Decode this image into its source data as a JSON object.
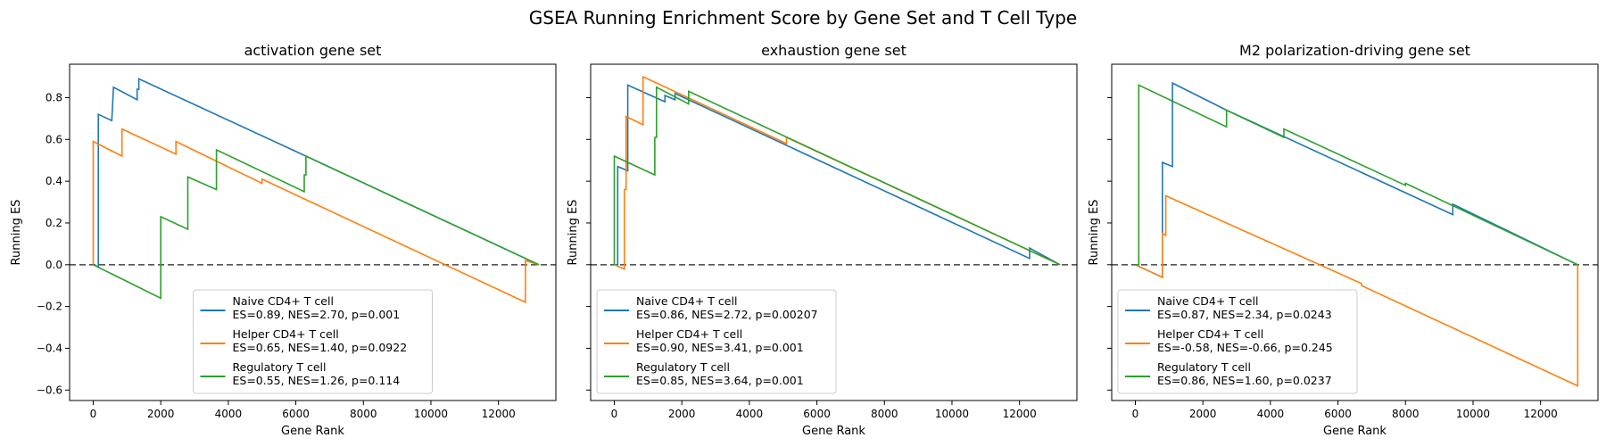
{
  "suptitle": "GSEA Running Enrichment Score by Gene Set and T Cell Type",
  "colors": {
    "naive": "#1f77b4",
    "helper": "#ff7f0e",
    "treg": "#2ca02c",
    "zero_line": "#555555"
  },
  "chart_data": [
    {
      "type": "line",
      "title": "activation gene set",
      "xlabel": "Gene Rank",
      "ylabel": "Running ES",
      "xlim": [
        -700,
        13700
      ],
      "ylim": [
        -0.65,
        0.96
      ],
      "xticks": [
        0,
        2000,
        4000,
        6000,
        8000,
        10000,
        12000
      ],
      "yticks": [
        -0.6,
        -0.4,
        -0.2,
        0.0,
        0.2,
        0.4,
        0.6,
        0.8
      ],
      "show_yticklabels": true,
      "legend_position": "lower center",
      "series": [
        {
          "name": "Naive CD4+ T cell",
          "stats": "ES=0.89, NES=2.70, p=0.001",
          "points": [
            [
              0,
              0
            ],
            [
              150,
              -0.01
            ],
            [
              150,
              0.72
            ],
            [
              550,
              0.69
            ],
            [
              550,
              0.69
            ],
            [
              600,
              0.85
            ],
            [
              1300,
              0.79
            ],
            [
              1300,
              0.84
            ],
            [
              1350,
              0.84
            ],
            [
              1350,
              0.89
            ],
            [
              6300,
              0.52
            ],
            [
              13200,
              0.0
            ]
          ]
        },
        {
          "name": "Helper CD4+ T cell",
          "stats": "ES=0.65, NES=1.40, p=0.0922",
          "points": [
            [
              0,
              0
            ],
            [
              0,
              0.59
            ],
            [
              850,
              0.52
            ],
            [
              850,
              0.65
            ],
            [
              2450,
              0.53
            ],
            [
              2450,
              0.59
            ],
            [
              5000,
              0.39
            ],
            [
              5000,
              0.41
            ],
            [
              12800,
              -0.18
            ],
            [
              12800,
              0.02
            ],
            [
              13200,
              0.0
            ]
          ]
        },
        {
          "name": "Regulatory T cell",
          "stats": "ES=0.55, NES=1.26, p=0.114",
          "points": [
            [
              0,
              0
            ],
            [
              2000,
              -0.16
            ],
            [
              2000,
              0.23
            ],
            [
              2800,
              0.17
            ],
            [
              2800,
              0.42
            ],
            [
              3650,
              0.36
            ],
            [
              3650,
              0.55
            ],
            [
              6250,
              0.35
            ],
            [
              6250,
              0.43
            ],
            [
              6300,
              0.43
            ],
            [
              6300,
              0.52
            ],
            [
              13200,
              0.0
            ]
          ]
        }
      ]
    },
    {
      "type": "line",
      "title": "exhaustion gene set",
      "xlabel": "Gene Rank",
      "ylabel": "Running ES",
      "xlim": [
        -700,
        13700
      ],
      "ylim": [
        -0.65,
        0.96
      ],
      "xticks": [
        0,
        2000,
        4000,
        6000,
        8000,
        10000,
        12000
      ],
      "yticks": [
        -0.6,
        -0.4,
        -0.2,
        0.0,
        0.2,
        0.4,
        0.6,
        0.8
      ],
      "show_yticklabels": false,
      "legend_position": "lower left",
      "series": [
        {
          "name": "Naive CD4+ T cell",
          "stats": "ES=0.86, NES=2.72, p=0.00207",
          "points": [
            [
              0,
              0
            ],
            [
              100,
              0.0
            ],
            [
              100,
              0.47
            ],
            [
              400,
              0.45
            ],
            [
              400,
              0.86
            ],
            [
              1500,
              0.78
            ],
            [
              1500,
              0.81
            ],
            [
              1800,
              0.79
            ],
            [
              1800,
              0.82
            ],
            [
              12300,
              0.03
            ],
            [
              12300,
              0.08
            ],
            [
              13200,
              0.0
            ]
          ]
        },
        {
          "name": "Helper CD4+ T cell",
          "stats": "ES=0.90, NES=3.41, p=0.001",
          "points": [
            [
              0,
              0
            ],
            [
              300,
              -0.02
            ],
            [
              300,
              0.36
            ],
            [
              350,
              0.36
            ],
            [
              350,
              0.71
            ],
            [
              850,
              0.67
            ],
            [
              850,
              0.9
            ],
            [
              5100,
              0.58
            ],
            [
              5100,
              0.61
            ],
            [
              13200,
              0.0
            ]
          ]
        },
        {
          "name": "Regulatory T cell",
          "stats": "ES=0.85, NES=3.64, p=0.001",
          "points": [
            [
              0,
              0
            ],
            [
              0,
              0.52
            ],
            [
              1200,
              0.43
            ],
            [
              1200,
              0.61
            ],
            [
              1250,
              0.61
            ],
            [
              1250,
              0.85
            ],
            [
              2200,
              0.77
            ],
            [
              2200,
              0.83
            ],
            [
              13200,
              0.0
            ]
          ]
        }
      ]
    },
    {
      "type": "line",
      "title": "M2 polarization-driving gene set",
      "xlabel": "Gene Rank",
      "ylabel": "Running ES",
      "xlim": [
        -700,
        13700
      ],
      "ylim": [
        -0.65,
        0.96
      ],
      "xticks": [
        0,
        2000,
        4000,
        6000,
        8000,
        10000,
        12000
      ],
      "yticks": [
        -0.6,
        -0.4,
        -0.2,
        0.0,
        0.2,
        0.4,
        0.6,
        0.8
      ],
      "show_yticklabels": false,
      "legend_position": "lower left",
      "series": [
        {
          "name": "Naive CD4+ T cell",
          "stats": "ES=0.87, NES=2.34, p=0.0243",
          "points": [
            [
              0,
              0
            ],
            [
              800,
              -0.06
            ],
            [
              800,
              0.49
            ],
            [
              1100,
              0.47
            ],
            [
              1100,
              0.87
            ],
            [
              2700,
              0.74
            ],
            [
              9400,
              0.24
            ],
            [
              9400,
              0.29
            ],
            [
              13100,
              0.0
            ]
          ]
        },
        {
          "name": "Helper CD4+ T cell",
          "stats": "ES=-0.58, NES=-0.66, p=0.245",
          "points": [
            [
              0,
              0
            ],
            [
              800,
              -0.06
            ],
            [
              800,
              0.15
            ],
            [
              900,
              0.14
            ],
            [
              900,
              0.33
            ],
            [
              6700,
              -0.09
            ],
            [
              6700,
              -0.1
            ],
            [
              13100,
              -0.58
            ],
            [
              13100,
              0.0
            ]
          ]
        },
        {
          "name": "Regulatory T cell",
          "stats": "ES=0.86, NES=1.60, p=0.0237",
          "points": [
            [
              0,
              0
            ],
            [
              100,
              0.0
            ],
            [
              100,
              0.86
            ],
            [
              2700,
              0.66
            ],
            [
              2700,
              0.74
            ],
            [
              4400,
              0.61
            ],
            [
              4400,
              0.65
            ],
            [
              8000,
              0.38
            ],
            [
              8000,
              0.39
            ],
            [
              13100,
              0.0
            ]
          ]
        }
      ]
    }
  ]
}
